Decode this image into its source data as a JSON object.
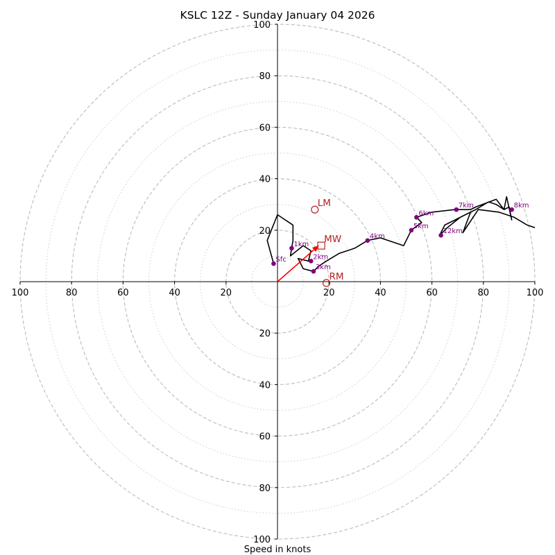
{
  "chart_data": {
    "type": "line",
    "title": "KSLC 12Z - Sunday January 04 2026",
    "xlabel": "Speed in knots",
    "ylabel": "",
    "xlim": [
      -100,
      100
    ],
    "ylim": [
      -100,
      100
    ],
    "ring_major": [
      20,
      40,
      60,
      80,
      100
    ],
    "ring_minor": [
      10,
      30,
      50,
      70,
      90
    ],
    "x_ticks": [
      -100,
      -80,
      -60,
      -40,
      -20,
      20,
      40,
      60,
      80,
      100
    ],
    "x_tick_labels": [
      "100",
      "80",
      "60",
      "40",
      "20",
      "20",
      "40",
      "60",
      "80",
      "100"
    ],
    "y_ticks": [
      100,
      80,
      60,
      40,
      20,
      -20,
      -40,
      -60,
      -80,
      -100
    ],
    "y_tick_labels": [
      "100",
      "80",
      "60",
      "40",
      "20",
      "20",
      "40",
      "60",
      "80",
      "100"
    ],
    "colors": {
      "trace": "#000000",
      "points": "#800080",
      "motion": "#b22222",
      "shear_vector": "#ff0000",
      "ring_major": "#bbbbbb",
      "ring_minor": "#cccccc"
    },
    "trace": {
      "name": "hodograph",
      "x": [
        -1.5,
        -4,
        0,
        6,
        6,
        5,
        10,
        13,
        12,
        8,
        10,
        14,
        16,
        19,
        24,
        30,
        35,
        40,
        49,
        52,
        56,
        54,
        60,
        69,
        75,
        77,
        85,
        88,
        89,
        91,
        90,
        88,
        85,
        82,
        77,
        73,
        69,
        65,
        63,
        66,
        71,
        75,
        72,
        78,
        86,
        92,
        97,
        100
      ],
      "y": [
        7,
        16,
        26,
        22,
        16,
        10,
        14,
        12,
        8,
        9,
        5,
        4,
        6,
        8,
        11,
        13,
        16,
        17,
        14,
        20,
        23,
        25,
        27,
        28,
        28,
        29,
        32,
        28,
        33,
        24,
        29,
        28,
        30,
        31,
        28,
        26,
        24,
        22,
        18,
        21,
        25,
        27,
        19,
        28,
        27,
        25,
        22,
        21
      ]
    },
    "height_points": [
      {
        "label": "Sfc",
        "x": -1.5,
        "y": 7
      },
      {
        "label": "1km",
        "x": 5.5,
        "y": 13
      },
      {
        "label": "2km",
        "x": 13,
        "y": 8
      },
      {
        "label": "3km",
        "x": 14,
        "y": 4
      },
      {
        "label": "4km",
        "x": 35,
        "y": 16
      },
      {
        "label": "5km",
        "x": 52,
        "y": 20
      },
      {
        "label": "6km",
        "x": 54,
        "y": 25
      },
      {
        "label": "7km",
        "x": 69.5,
        "y": 28
      },
      {
        "label": "8km",
        "x": 91,
        "y": 28
      },
      {
        "label": "12km",
        "x": 63.5,
        "y": 18
      }
    ],
    "storm_motion": [
      {
        "label": "LM",
        "marker": "circle",
        "x": 14.5,
        "y": 28
      },
      {
        "label": "MW",
        "marker": "square",
        "x": 17,
        "y": 14
      },
      {
        "label": "RM",
        "marker": "circle",
        "x": 19,
        "y": -0.5
      }
    ],
    "shear_vector": {
      "x0": 0,
      "y0": 0,
      "x1": 16,
      "y1": 14
    }
  }
}
